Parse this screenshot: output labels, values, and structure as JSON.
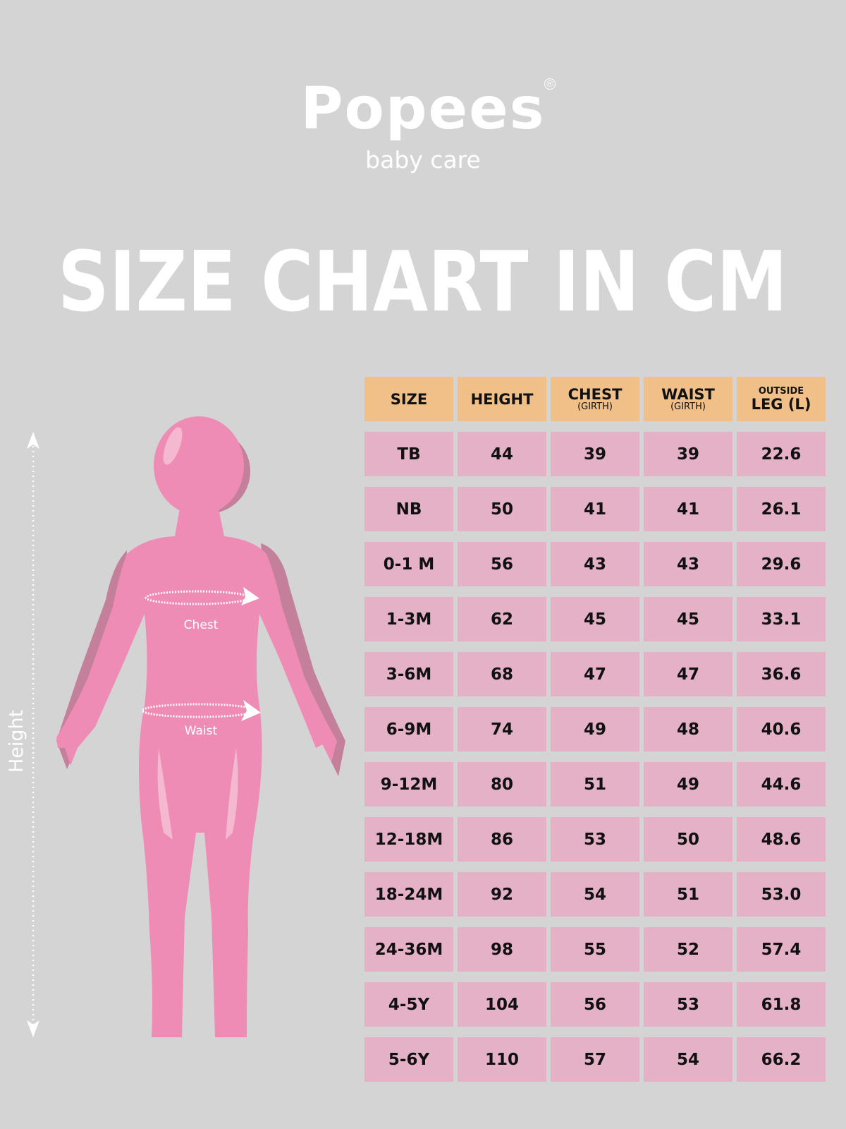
{
  "brand": {
    "name": "Popees",
    "registered": "®",
    "tagline": "baby care"
  },
  "title": "SIZE CHART IN CM",
  "figure": {
    "height_label": "Height",
    "chest_label": "Chest",
    "waist_label": "Waist"
  },
  "colors": {
    "background": "#d4d4d4",
    "header": "#f0c088",
    "cell": "#e4b1c7",
    "mannequin": "#ef8cb6"
  },
  "table": {
    "headers": [
      {
        "pre": "",
        "main": "SIZE",
        "sub": ""
      },
      {
        "pre": "",
        "main": "HEIGHT",
        "sub": ""
      },
      {
        "pre": "",
        "main": "CHEST",
        "sub": "(GIRTH)"
      },
      {
        "pre": "",
        "main": "WAIST",
        "sub": "(GIRTH)"
      },
      {
        "pre": "OUTSIDE",
        "main": "LEG (L)",
        "sub": ""
      }
    ],
    "rows": [
      [
        "TB",
        "44",
        "39",
        "39",
        "22.6"
      ],
      [
        "NB",
        "50",
        "41",
        "41",
        "26.1"
      ],
      [
        "0-1 M",
        "56",
        "43",
        "43",
        "29.6"
      ],
      [
        "1-3M",
        "62",
        "45",
        "45",
        "33.1"
      ],
      [
        "3-6M",
        "68",
        "47",
        "47",
        "36.6"
      ],
      [
        "6-9M",
        "74",
        "49",
        "48",
        "40.6"
      ],
      [
        "9-12M",
        "80",
        "51",
        "49",
        "44.6"
      ],
      [
        "12-18M",
        "86",
        "53",
        "50",
        "48.6"
      ],
      [
        "18-24M",
        "92",
        "54",
        "51",
        "53.0"
      ],
      [
        "24-36M",
        "98",
        "55",
        "52",
        "57.4"
      ],
      [
        "4-5Y",
        "104",
        "56",
        "53",
        "61.8"
      ],
      [
        "5-6Y",
        "110",
        "57",
        "54",
        "66.2"
      ]
    ]
  }
}
